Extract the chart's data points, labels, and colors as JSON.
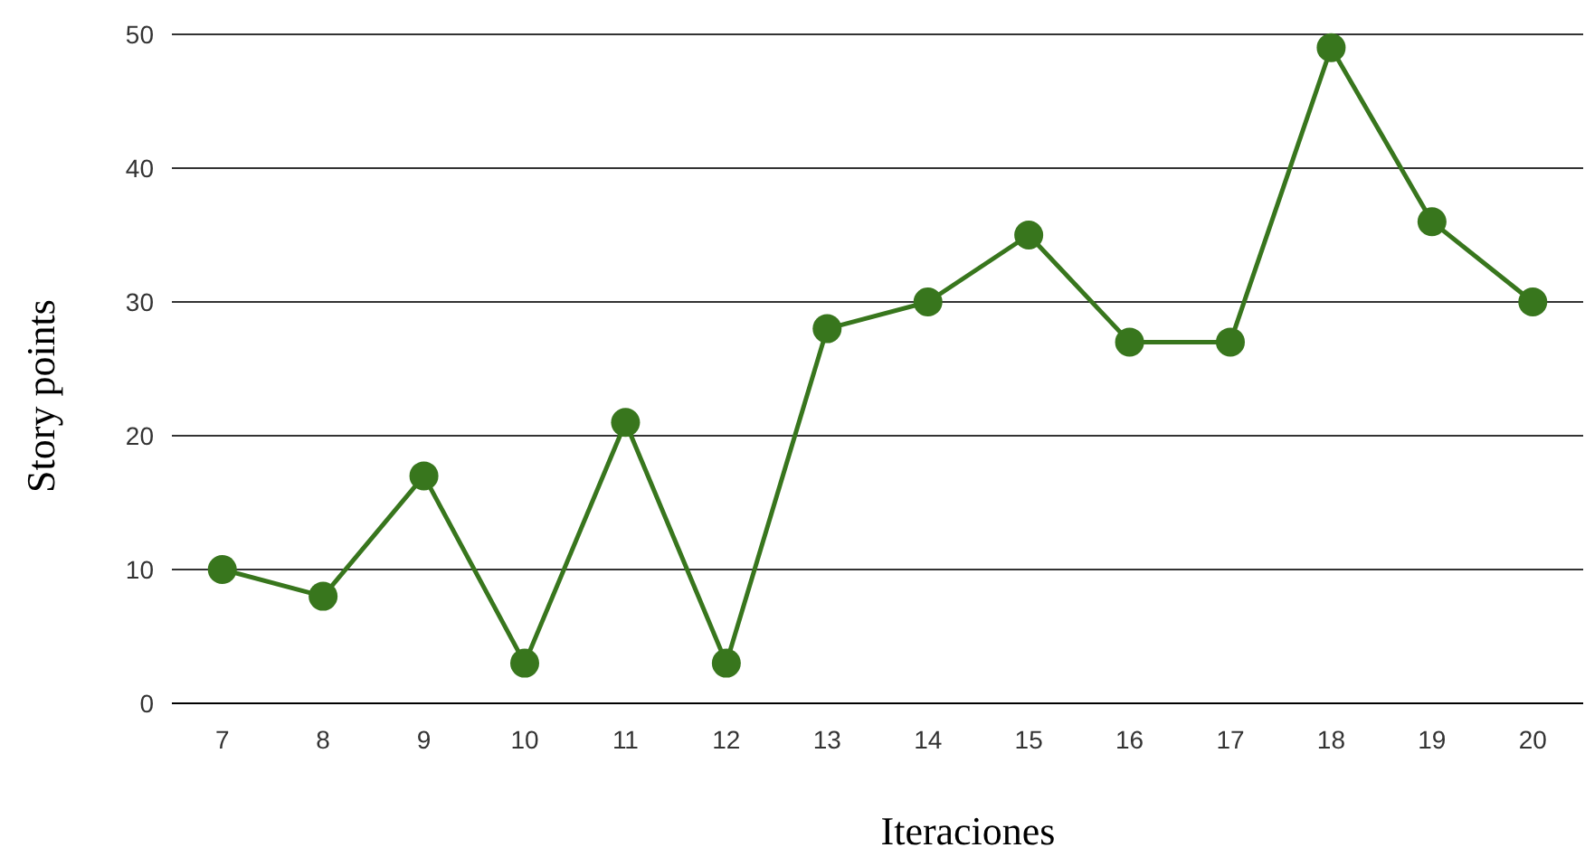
{
  "chart_data": {
    "type": "line",
    "xlabel": "Iteraciones",
    "ylabel": "Story points",
    "categories": [
      "7",
      "8",
      "9",
      "10",
      "11",
      "12",
      "13",
      "14",
      "15",
      "16",
      "17",
      "18",
      "19",
      "20"
    ],
    "series": [
      {
        "color": "#38761d",
        "values": [
          10,
          8,
          17,
          3,
          21,
          3,
          28,
          30,
          35,
          27,
          27,
          49,
          36,
          30
        ]
      }
    ],
    "ylim": [
      0,
      50
    ],
    "yticks": [
      0,
      10,
      20,
      30,
      40,
      50
    ],
    "grid": "y",
    "marker": "circle",
    "line_style": "solid"
  }
}
